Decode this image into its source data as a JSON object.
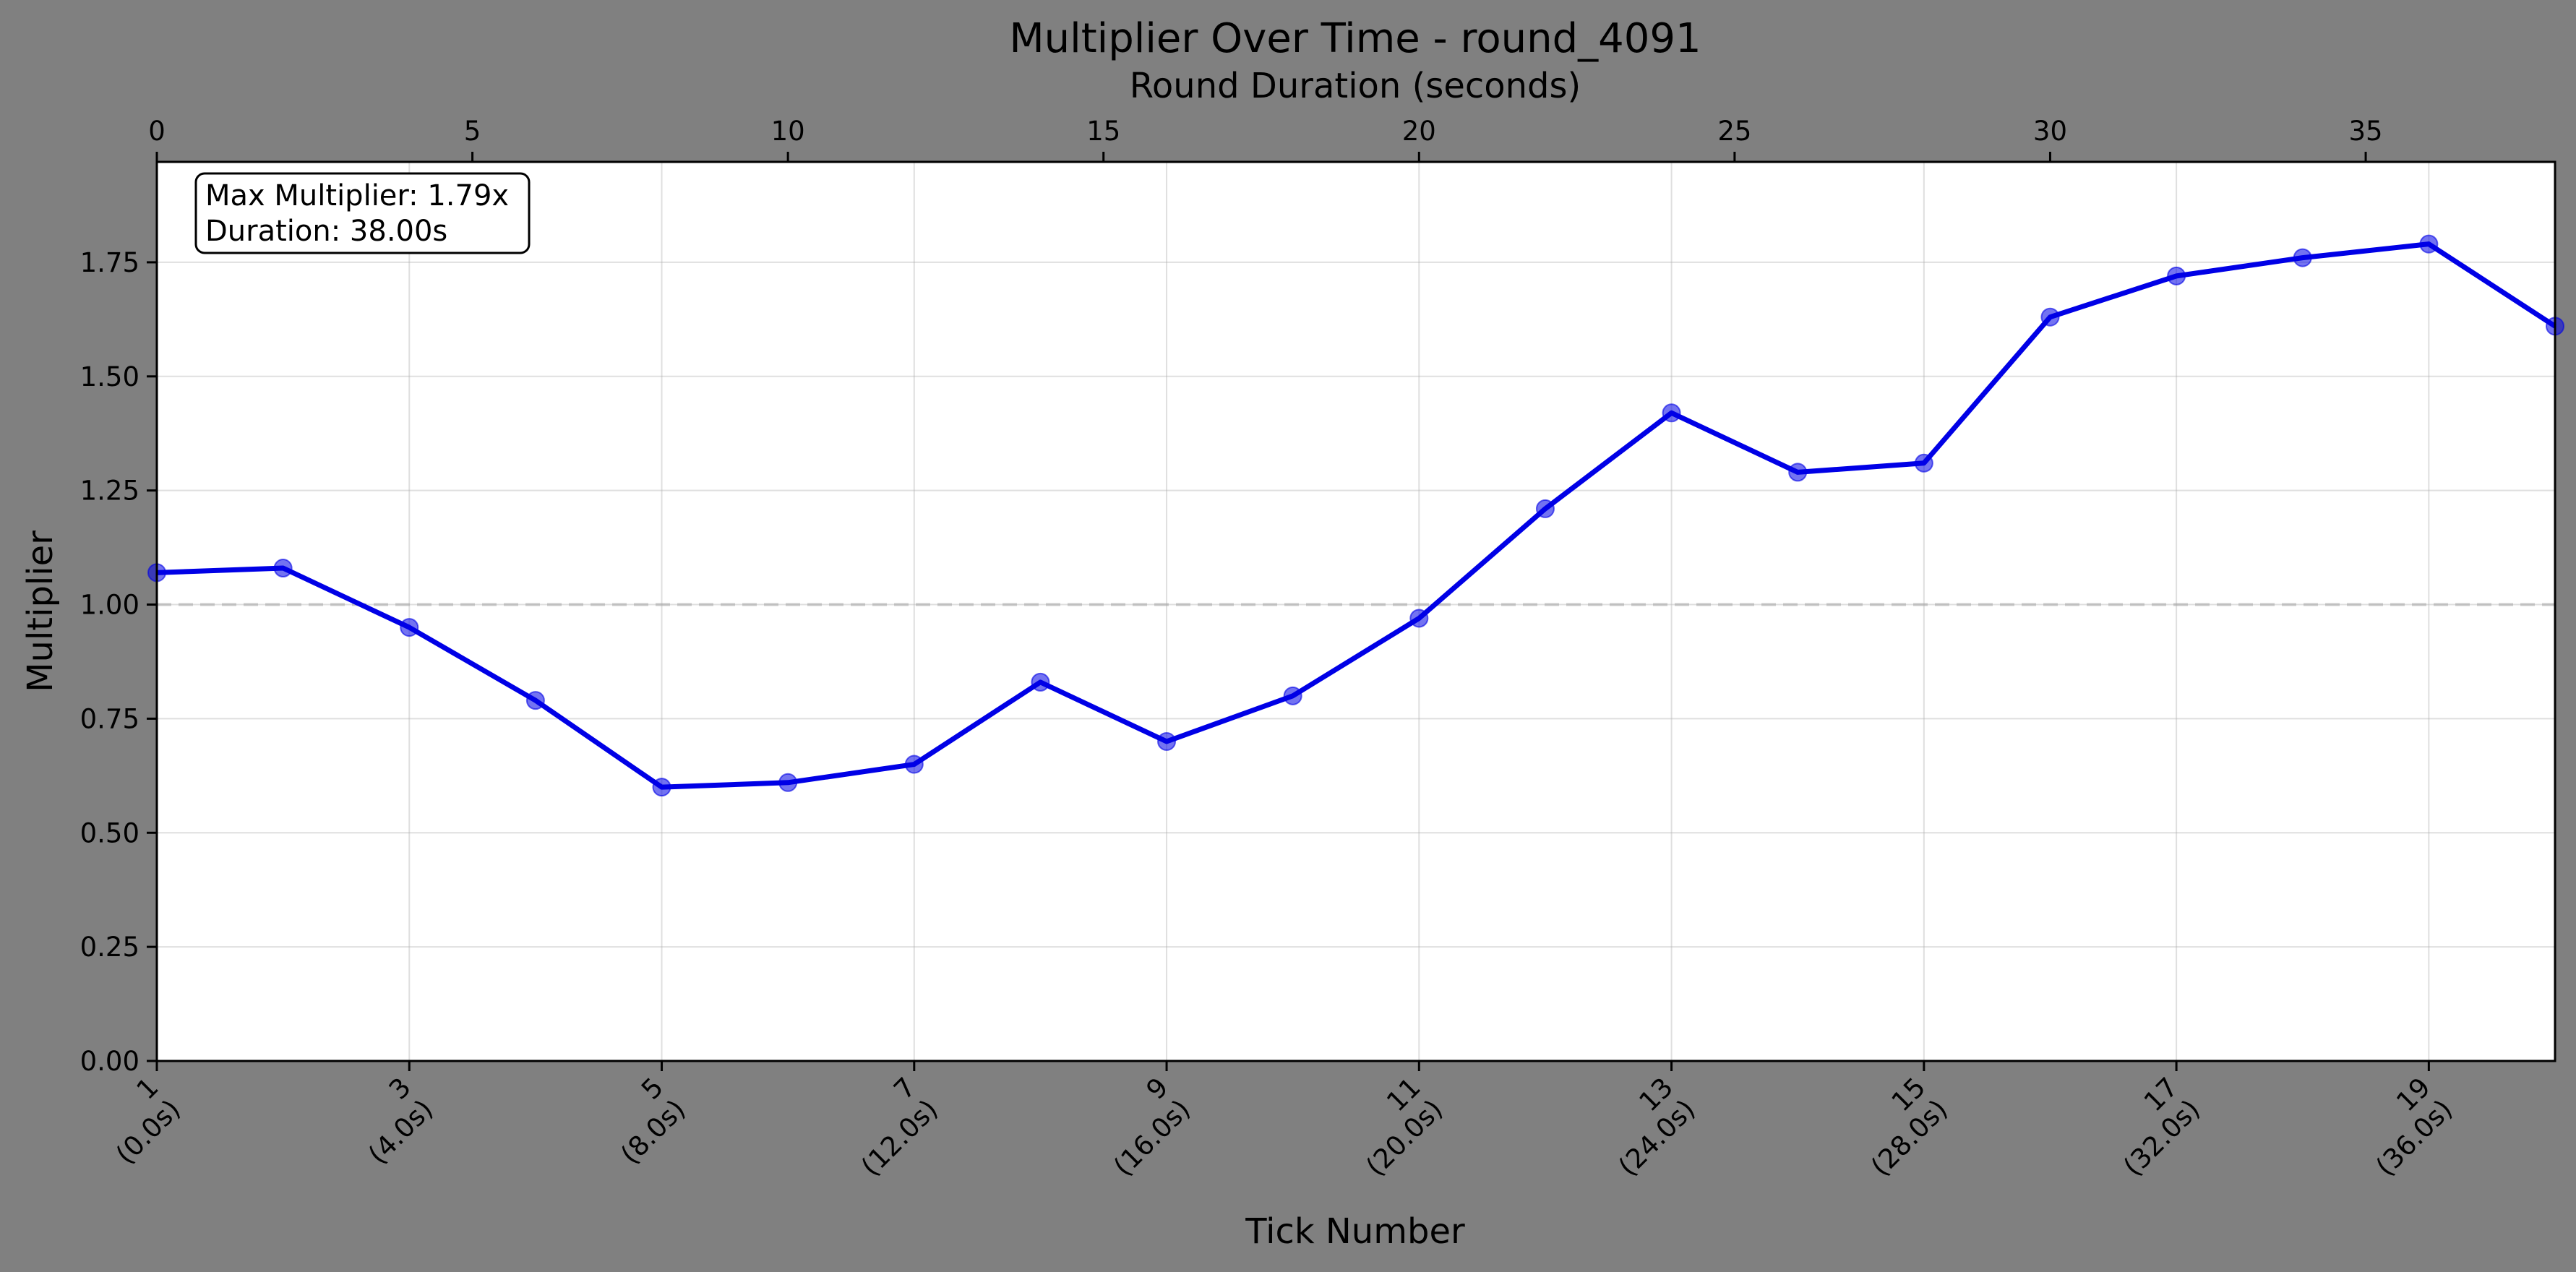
{
  "chart_data": {
    "type": "line",
    "title": "Multiplier Over Time - round_4091",
    "xlabel": "Tick Number",
    "ylabel": "Multiplier",
    "top_xlabel": "Round Duration (seconds)",
    "x": [
      1,
      2,
      3,
      4,
      5,
      6,
      7,
      8,
      9,
      10,
      11,
      12,
      13,
      14,
      15,
      16,
      17,
      18,
      19,
      20
    ],
    "seconds": [
      0,
      2,
      4,
      6,
      8,
      10,
      12,
      14,
      16,
      18,
      20,
      22,
      24,
      26,
      28,
      30,
      32,
      34,
      36,
      38
    ],
    "series": [
      {
        "values": [
          1.07,
          1.08,
          0.95,
          0.79,
          0.6,
          0.61,
          0.65,
          0.83,
          0.7,
          0.8,
          0.97,
          1.21,
          1.42,
          1.29,
          1.31,
          1.63,
          1.72,
          1.76,
          1.79,
          1.61
        ],
        "color": "#0000e6"
      }
    ],
    "xlim": [
      1,
      20
    ],
    "top_xlim": [
      0,
      38
    ],
    "ylim": [
      0,
      1.97
    ],
    "yticks": [
      "0.00",
      "0.25",
      "0.50",
      "0.75",
      "1.00",
      "1.25",
      "1.50",
      "1.75"
    ],
    "xtick_labels": [
      [
        "1",
        "(0.0s)"
      ],
      [
        "3",
        "(4.0s)"
      ],
      [
        "5",
        "(8.0s)"
      ],
      [
        "7",
        "(12.0s)"
      ],
      [
        "9",
        "(16.0s)"
      ],
      [
        "11",
        "(20.0s)"
      ],
      [
        "13",
        "(24.0s)"
      ],
      [
        "15",
        "(28.0s)"
      ],
      [
        "17",
        "(32.0s)"
      ],
      [
        "19",
        "(36.0s)"
      ]
    ],
    "top_xticks": [
      "0",
      "5",
      "10",
      "15",
      "20",
      "25",
      "30",
      "35"
    ],
    "reference_line": 1.0,
    "annotation": [
      "Max Multiplier: 1.79x",
      "Duration: 38.00s"
    ],
    "grid": true,
    "legend": "none",
    "background": "#808080",
    "plot_background": "#ffffff"
  }
}
